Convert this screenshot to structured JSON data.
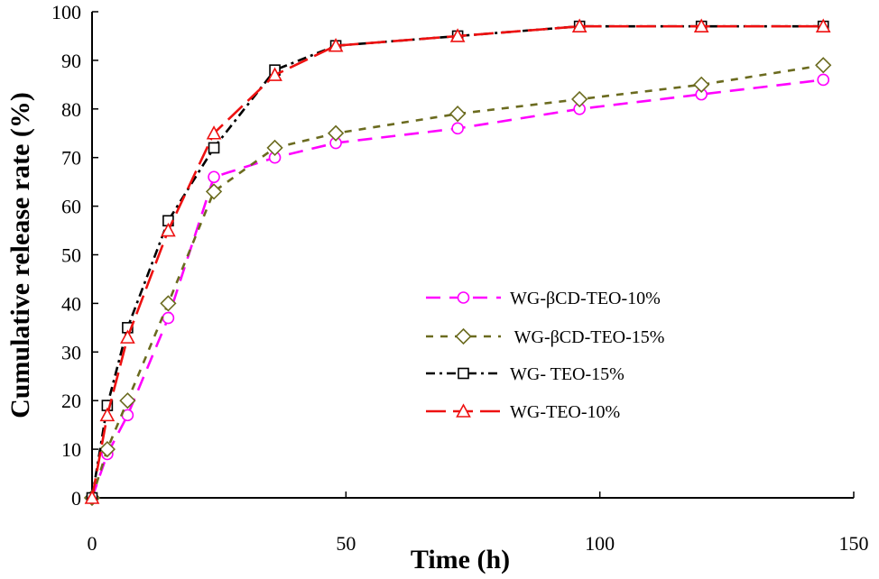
{
  "chart_data": {
    "type": "line",
    "title": "",
    "xlabel": "Time (h)",
    "ylabel": "Cumulative release rate (%)",
    "xlim": [
      0,
      150
    ],
    "ylim": [
      0,
      100
    ],
    "x_ticks": [
      0,
      50,
      100,
      150
    ],
    "y_ticks": [
      0,
      10,
      20,
      30,
      40,
      50,
      60,
      70,
      80,
      90,
      100
    ],
    "grid": false,
    "legend_position": "center-right",
    "x": [
      0,
      3,
      7,
      15,
      24,
      36,
      48,
      72,
      96,
      120,
      144
    ],
    "series": [
      {
        "name": "WG-βCD-TEO-10%",
        "color": "#ff00ff",
        "marker": "circle",
        "dash": "dash",
        "values": [
          0,
          9,
          17,
          37,
          66,
          70,
          73,
          76,
          80,
          83,
          86
        ]
      },
      {
        "name": " WG-βCD-TEO-15%",
        "color": "#6b6b1f",
        "marker": "diamond",
        "dash": "short-dash",
        "values": [
          0,
          10,
          20,
          40,
          63,
          72,
          75,
          79,
          82,
          85,
          89
        ]
      },
      {
        "name": "WG- TEO-15%",
        "color": "#000000",
        "marker": "square",
        "dash": "dash-dot",
        "values": [
          0,
          19,
          35,
          57,
          72,
          88,
          93,
          95,
          97,
          97,
          97
        ]
      },
      {
        "name": "WG-TEO-10%",
        "color": "#ee1111",
        "marker": "triangle",
        "dash": "long-dash",
        "values": [
          0,
          17,
          33,
          55,
          75,
          87,
          93,
          95,
          97,
          97,
          97
        ]
      }
    ]
  }
}
